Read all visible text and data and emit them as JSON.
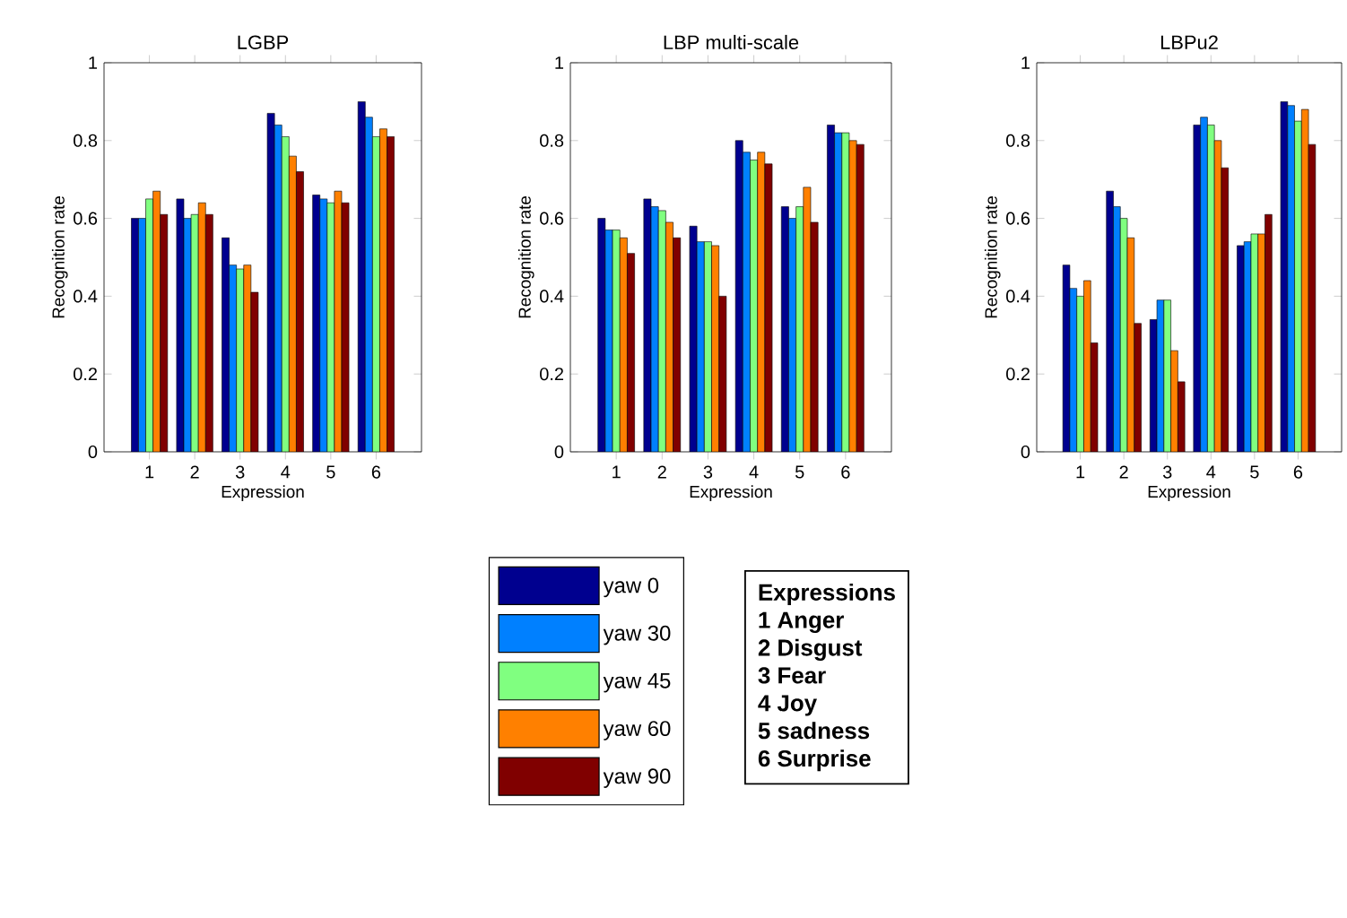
{
  "chart_data": [
    {
      "type": "bar",
      "title": "LGBP",
      "xlabel": "Expression",
      "ylabel": "Recognition rate",
      "categories": [
        "1",
        "2",
        "3",
        "4",
        "5",
        "6"
      ],
      "ylim": [
        0,
        1
      ],
      "yticks": [
        0,
        0.2,
        0.4,
        0.6,
        0.8,
        1
      ],
      "series": [
        {
          "color": "#00008f",
          "values": [
            0.6,
            0.65,
            0.55,
            0.87,
            0.66,
            0.9
          ]
        },
        {
          "color": "#0080ff",
          "values": [
            0.6,
            0.6,
            0.48,
            0.84,
            0.65,
            0.86
          ]
        },
        {
          "color": "#80ff80",
          "values": [
            0.65,
            0.61,
            0.47,
            0.81,
            0.64,
            0.81
          ]
        },
        {
          "color": "#ff8000",
          "values": [
            0.67,
            0.64,
            0.48,
            0.76,
            0.67,
            0.83
          ]
        },
        {
          "color": "#800000",
          "values": [
            0.61,
            0.61,
            0.41,
            0.72,
            0.64,
            0.81
          ]
        }
      ]
    },
    {
      "type": "bar",
      "title": "LBP multi-scale",
      "xlabel": "Expression",
      "ylabel": "Recognition rate",
      "categories": [
        "1",
        "2",
        "3",
        "4",
        "5",
        "6"
      ],
      "ylim": [
        0,
        1
      ],
      "yticks": [
        0,
        0.2,
        0.4,
        0.6,
        0.8,
        1
      ],
      "legend": "bottom",
      "series": [
        {
          "name": "yaw 0",
          "color": "#00008f",
          "values": [
            0.6,
            0.65,
            0.58,
            0.8,
            0.63,
            0.84
          ]
        },
        {
          "name": "yaw 30",
          "color": "#0080ff",
          "values": [
            0.57,
            0.63,
            0.54,
            0.77,
            0.6,
            0.82
          ]
        },
        {
          "name": "yaw 45",
          "color": "#80ff80",
          "values": [
            0.57,
            0.62,
            0.54,
            0.75,
            0.63,
            0.82
          ]
        },
        {
          "name": "yaw 60",
          "color": "#ff8000",
          "values": [
            0.55,
            0.59,
            0.53,
            0.77,
            0.68,
            0.8
          ]
        },
        {
          "name": "yaw 90",
          "color": "#800000",
          "values": [
            0.51,
            0.55,
            0.4,
            0.74,
            0.59,
            0.79
          ]
        }
      ]
    },
    {
      "type": "bar",
      "title": "LBPu2",
      "xlabel": "Expression",
      "ylabel": "Recognition rate",
      "categories": [
        "1",
        "2",
        "3",
        "4",
        "5",
        "6"
      ],
      "ylim": [
        0,
        1
      ],
      "yticks": [
        0,
        0.2,
        0.4,
        0.6,
        0.8,
        1
      ],
      "series": [
        {
          "color": "#00008f",
          "values": [
            0.48,
            0.67,
            0.34,
            0.84,
            0.53,
            0.9
          ]
        },
        {
          "color": "#0080ff",
          "values": [
            0.42,
            0.63,
            0.39,
            0.86,
            0.54,
            0.89
          ]
        },
        {
          "color": "#80ff80",
          "values": [
            0.4,
            0.6,
            0.39,
            0.84,
            0.56,
            0.85
          ]
        },
        {
          "color": "#ff8000",
          "values": [
            0.44,
            0.55,
            0.26,
            0.8,
            0.56,
            0.88
          ]
        },
        {
          "color": "#800000",
          "values": [
            0.28,
            0.33,
            0.18,
            0.73,
            0.61,
            0.79
          ]
        }
      ]
    },
    {
      "type": "other",
      "title": "Expressions",
      "annotations": [
        "1 Anger",
        "2 Disgust",
        "3 Fear",
        "4 Joy",
        "5 sadness",
        "6 Surprise"
      ]
    }
  ]
}
